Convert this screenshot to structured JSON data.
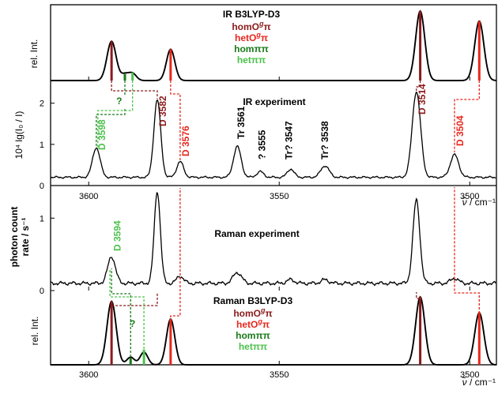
{
  "colors": {
    "homO": "#8b1a1a",
    "hetO": "#e8261c",
    "hom": "#1a7a1a",
    "het": "#4cc24c",
    "trace": "#000000"
  },
  "chart_data": {
    "type": "line",
    "xlim": [
      3610,
      3493
    ],
    "x_ticks": [
      3600,
      3550,
      3500
    ],
    "x_tick_labels": [
      "3600",
      "3550",
      "3500"
    ],
    "x_unit_symbol": "ν̃",
    "x_unit": "/ cm⁻¹",
    "panels": [
      {
        "id": "ir-calc",
        "kind": "calc",
        "ylabel": "rel. Int.",
        "title": "IR B3LYP-D3",
        "legend": [
          {
            "base": "homO",
            "sup": "g",
            "tail": "π",
            "color_key": "homO"
          },
          {
            "base": "hetO",
            "sup": "g",
            "tail": "π",
            "color_key": "hetO"
          },
          {
            "base": "homππ",
            "sup": "",
            "tail": "",
            "color_key": "hom"
          },
          {
            "base": "hetππ",
            "sup": "",
            "tail": "",
            "color_key": "het"
          }
        ],
        "sticks": [
          {
            "x": 3594,
            "h": 0.78,
            "color_key": "homO"
          },
          {
            "x": 3578.5,
            "h": 0.62,
            "color_key": "hetO"
          },
          {
            "x": 3590.5,
            "h": 0.13,
            "color_key": "hom"
          },
          {
            "x": 3588.5,
            "h": 0.16,
            "color_key": "het"
          },
          {
            "x": 3513,
            "h": 1.38,
            "color_key": "homO"
          },
          {
            "x": 3497.5,
            "h": 1.18,
            "color_key": "hetO"
          }
        ],
        "peaks": [
          {
            "x": 3594,
            "h": 0.78,
            "w": 1.2
          },
          {
            "x": 3590.5,
            "h": 0.12,
            "w": 1.0
          },
          {
            "x": 3588.5,
            "h": 0.14,
            "w": 1.0
          },
          {
            "x": 3578.5,
            "h": 0.62,
            "w": 1.1
          },
          {
            "x": 3513,
            "h": 1.38,
            "w": 1.2
          },
          {
            "x": 3497.5,
            "h": 1.18,
            "w": 1.2
          }
        ],
        "annotations": [
          {
            "text": "?",
            "x": 3592,
            "color_key": "hom"
          }
        ]
      },
      {
        "id": "ir-exp",
        "kind": "exp",
        "ylabel": "10⁴ lg(I₀ / I)",
        "title": "IR experiment",
        "ylim": [
          0,
          2.55
        ],
        "y_ticks": [
          0,
          1,
          2
        ],
        "y_tick_labels": [
          "0",
          "1",
          "2"
        ],
        "baseline": 0.2,
        "peaks": [
          {
            "x": 3598,
            "h": 0.72,
            "w": 1.0
          },
          {
            "x": 3582,
            "h": 1.88,
            "w": 0.9
          },
          {
            "x": 3576,
            "h": 0.38,
            "w": 0.9
          },
          {
            "x": 3561,
            "h": 0.75,
            "w": 1.0
          },
          {
            "x": 3555,
            "h": 0.14,
            "w": 0.9
          },
          {
            "x": 3547,
            "h": 0.2,
            "w": 0.9
          },
          {
            "x": 3538,
            "h": 0.28,
            "w": 1.1
          },
          {
            "x": 3514,
            "h": 2.08,
            "w": 1.1
          },
          {
            "x": 3504,
            "h": 0.55,
            "w": 1.1
          }
        ],
        "labels": [
          {
            "text": "D 3598",
            "x": 3596.5,
            "color_key": "het"
          },
          {
            "text": "D 3582",
            "x": 3580.5,
            "color_key": "homO"
          },
          {
            "text": "D 3576",
            "x": 3574.5,
            "color_key": "hetO"
          },
          {
            "text": "Tr 3561",
            "x": 3560,
            "color_key": "trace"
          },
          {
            "text": "? 3555",
            "x": 3554.5,
            "color_key": "trace"
          },
          {
            "text": "Tr? 3547",
            "x": 3547.5,
            "color_key": "trace"
          },
          {
            "text": "Tr? 3538",
            "x": 3538,
            "color_key": "trace"
          },
          {
            "text": "D 3514",
            "x": 3512.5,
            "color_key": "homO"
          },
          {
            "text": "D 3504",
            "x": 3502.5,
            "color_key": "hetO"
          }
        ],
        "annotations": [
          {
            "text": "?",
            "x": 3592.5,
            "color_key": "hom"
          }
        ]
      },
      {
        "id": "raman-exp",
        "kind": "exp",
        "ylabel": "photon count rate / s⁻¹",
        "title": "Raman experiment",
        "ylim": [
          0,
          1.45
        ],
        "y_ticks": [
          0,
          1
        ],
        "y_tick_labels": [
          "0",
          "1"
        ],
        "baseline": 0.1,
        "peaks": [
          {
            "x": 3594,
            "h": 0.37,
            "w": 1.0
          },
          {
            "x": 3582,
            "h": 1.27,
            "w": 0.8
          },
          {
            "x": 3576,
            "h": 0.1,
            "w": 0.9
          },
          {
            "x": 3561,
            "h": 0.15,
            "w": 1.1
          },
          {
            "x": 3547,
            "h": 0.05,
            "w": 1.0
          },
          {
            "x": 3538,
            "h": 0.05,
            "w": 1.0
          },
          {
            "x": 3514,
            "h": 1.15,
            "w": 0.9
          },
          {
            "x": 3504,
            "h": 0.07,
            "w": 1.0
          }
        ],
        "labels": [
          {
            "text": "D 3594",
            "x": 3592.5,
            "color_key": "het"
          }
        ]
      },
      {
        "id": "raman-calc",
        "kind": "calc",
        "ylabel": "rel. Int.",
        "title": "Raman B3LYP-D3",
        "legend": [
          {
            "base": "homO",
            "sup": "g",
            "tail": "π",
            "color_key": "homO"
          },
          {
            "base": "hetO",
            "sup": "g",
            "tail": "π",
            "color_key": "hetO"
          },
          {
            "base": "hom",
            "sup": "",
            "tail": "ππ",
            "color_key": "hom"
          },
          {
            "base": "hetππ",
            "sup": "",
            "tail": "",
            "color_key": "het"
          }
        ],
        "sticks": [
          {
            "x": 3594,
            "h": 1.0,
            "color_key": "homO"
          },
          {
            "x": 3578.5,
            "h": 0.72,
            "color_key": "hetO"
          },
          {
            "x": 3589,
            "h": 0.11,
            "color_key": "hom"
          },
          {
            "x": 3585.5,
            "h": 0.24,
            "color_key": "het"
          },
          {
            "x": 3513,
            "h": 1.07,
            "color_key": "homO"
          },
          {
            "x": 3497.5,
            "h": 0.82,
            "color_key": "hetO"
          }
        ],
        "peaks": [
          {
            "x": 3594,
            "h": 1.0,
            "w": 1.2
          },
          {
            "x": 3589,
            "h": 0.12,
            "w": 1.0
          },
          {
            "x": 3585.5,
            "h": 0.2,
            "w": 1.0
          },
          {
            "x": 3578.5,
            "h": 0.72,
            "w": 1.1
          },
          {
            "x": 3513,
            "h": 1.07,
            "w": 1.2
          },
          {
            "x": 3497.5,
            "h": 0.82,
            "w": 1.2
          }
        ],
        "annotations": [
          {
            "text": "?",
            "x": 3588.5,
            "color_key": "hom"
          }
        ]
      }
    ],
    "connectors": [
      {
        "from_x": 3594,
        "to_x": 3582,
        "color_key": "homO",
        "from": "ir-calc",
        "to": "ir-exp"
      },
      {
        "from_x": 3578.5,
        "to_x": 3576,
        "color_key": "hetO",
        "from": "ir-calc",
        "to": "ir-exp"
      },
      {
        "from_x": 3590.5,
        "to_x": 3598,
        "color_key": "hom",
        "from": "ir-calc",
        "to": "ir-exp"
      },
      {
        "from_x": 3588.5,
        "to_x": 3598,
        "color_key": "het",
        "from": "ir-calc",
        "to": "ir-exp"
      },
      {
        "from_x": 3513,
        "to_x": 3514,
        "color_key": "homO",
        "from": "ir-calc",
        "to": "ir-exp"
      },
      {
        "from_x": 3497.5,
        "to_x": 3504,
        "color_key": "hetO",
        "from": "ir-calc",
        "to": "ir-exp"
      },
      {
        "from_x": 3594,
        "to_x": 3582,
        "color_key": "homO",
        "from": "raman-calc",
        "to": "raman-exp"
      },
      {
        "from_x": 3578.5,
        "to_x": 3576,
        "color_key": "hetO",
        "from": "raman-calc",
        "to": "raman-exp"
      },
      {
        "from_x": 3589,
        "to_x": 3594,
        "color_key": "hom",
        "from": "raman-calc",
        "to": "raman-exp"
      },
      {
        "from_x": 3585.5,
        "to_x": 3594,
        "color_key": "het",
        "from": "raman-calc",
        "to": "raman-exp"
      },
      {
        "from_x": 3513,
        "to_x": 3514,
        "color_key": "homO",
        "from": "raman-calc",
        "to": "raman-exp"
      },
      {
        "from_x": 3497.5,
        "to_x": 3504,
        "color_key": "hetO",
        "from": "raman-calc",
        "to": "raman-exp"
      }
    ]
  }
}
